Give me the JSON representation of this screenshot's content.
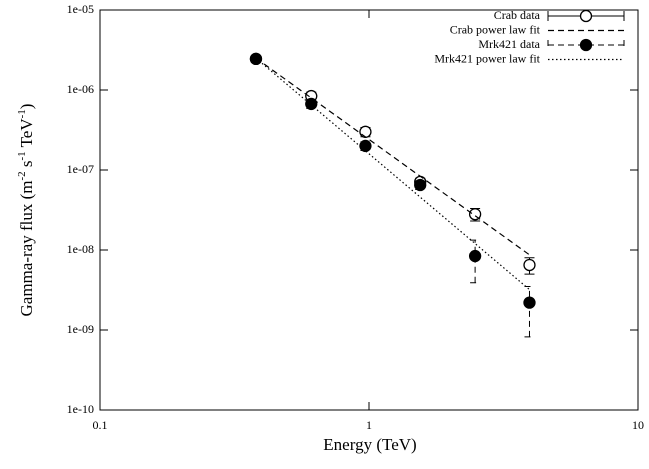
{
  "chart_data": {
    "type": "scatter",
    "xlabel": "Energy (TeV)",
    "ylabel": [
      "Gamma-ray flux (m",
      "-2",
      " s",
      "-1",
      " TeV",
      "-1",
      ")"
    ],
    "xscale": "log",
    "yscale": "log",
    "xlim": [
      0.1,
      10
    ],
    "ylim": [
      1e-10,
      1e-05
    ],
    "xticks": [
      0.1,
      1,
      10
    ],
    "yticks": [
      {
        "value": 1e-10,
        "label": "1e-10"
      },
      {
        "value": 1e-09,
        "label": "1e-09"
      },
      {
        "value": 1e-08,
        "label": "1e-08"
      },
      {
        "value": 1e-07,
        "label": "1e-07"
      },
      {
        "value": 1e-06,
        "label": "1e-06"
      },
      {
        "value": 1e-05,
        "label": "1e-05"
      }
    ],
    "legend": "top-right",
    "series": [
      {
        "name": "Crab data",
        "kind": "points",
        "marker": "open",
        "color": "#000000",
        "errorbar_dash": "solid",
        "x": [
          0.38,
          0.61,
          0.97,
          1.55,
          2.48,
          3.95
        ],
        "values": [
          2.45e-06,
          8.4e-07,
          3e-07,
          7.1e-08,
          2.8e-08,
          6.5e-09
        ],
        "err_low": [
          2e-07,
          1e-07,
          4e-08,
          8e-09,
          5e-09,
          1.5e-09
        ],
        "err_high": [
          2e-07,
          1e-07,
          4e-08,
          8e-09,
          5e-09,
          1.5e-09
        ]
      },
      {
        "name": "Crab power law fit",
        "kind": "line",
        "dash": "dashed",
        "color": "#000000",
        "x": [
          0.38,
          3.95
        ],
        "values": [
          2.5e-06,
          8.7e-09
        ]
      },
      {
        "name": "Mrk421 data",
        "kind": "points",
        "marker": "filled",
        "color": "#000000",
        "errorbar_dash": "dashed",
        "x": [
          0.38,
          0.61,
          0.97,
          1.55,
          2.48,
          3.95
        ],
        "values": [
          2.45e-06,
          6.7e-07,
          2e-07,
          6.5e-08,
          8.4e-09,
          2.2e-09
        ],
        "err_low": [
          2e-07,
          8e-08,
          2.5e-08,
          8e-09,
          4.5e-09,
          1.38e-09
        ],
        "err_high": [
          2e-07,
          8e-08,
          2.5e-08,
          8e-09,
          4.9e-09,
          1.3e-09
        ]
      },
      {
        "name": "Mrk421 power law fit",
        "kind": "line",
        "dash": "dotted",
        "color": "#000000",
        "x": [
          0.38,
          3.95
        ],
        "values": [
          2.5e-06,
          3.2e-09
        ]
      }
    ]
  }
}
